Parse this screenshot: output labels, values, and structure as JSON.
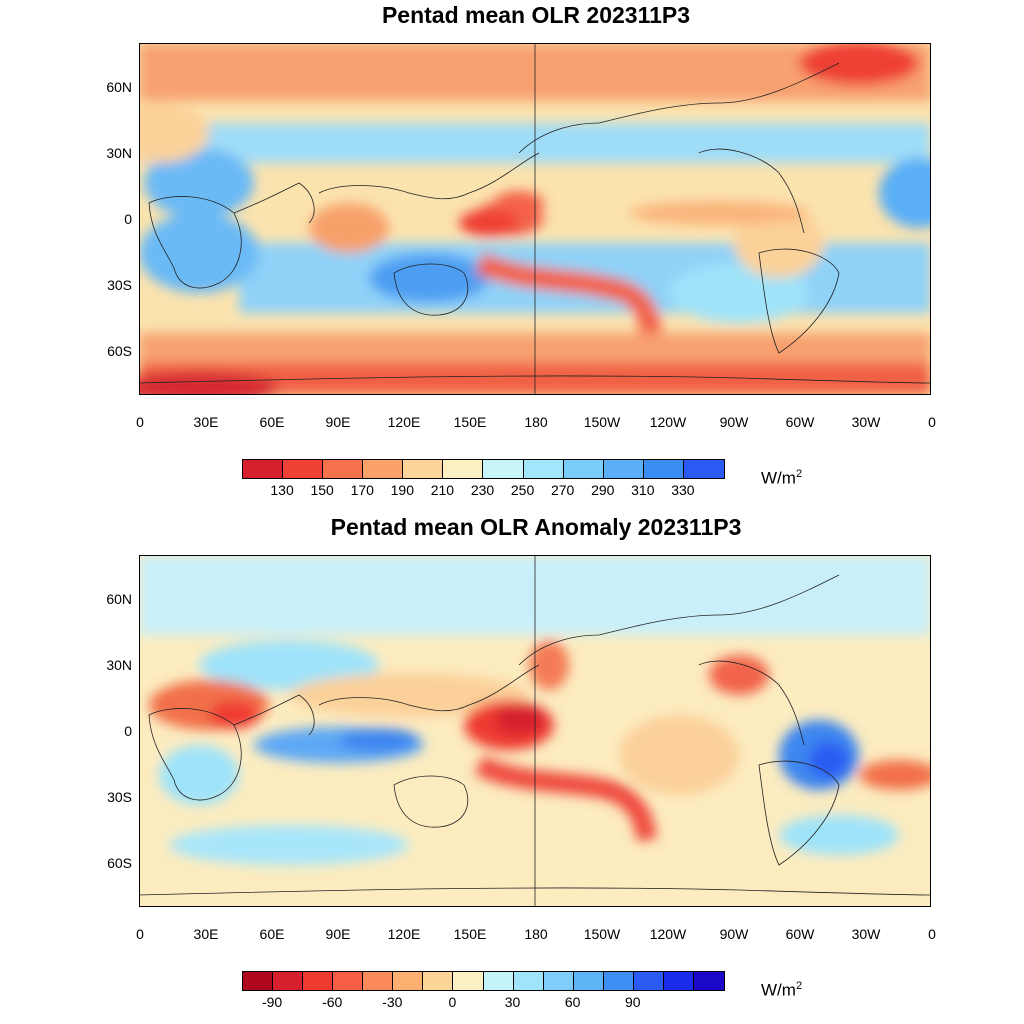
{
  "panels": [
    {
      "title": "Pentad mean OLR 202311P3",
      "units_base": "W/m",
      "units_exp": "2",
      "colorbar": {
        "colors": [
          "#d6202e",
          "#ef4136",
          "#f8714d",
          "#fba26a",
          "#fdd59a",
          "#fcf0c2",
          "#c7f5fa",
          "#a3e6fb",
          "#79cdfa",
          "#5aaff6",
          "#3a8ef4",
          "#2a5af4"
        ],
        "labels": [
          "130",
          "150",
          "170",
          "190",
          "210",
          "230",
          "250",
          "270",
          "290",
          "310",
          "330"
        ]
      }
    },
    {
      "title": "Pentad mean OLR Anomaly 202311P3",
      "units_base": "W/m",
      "units_exp": "2",
      "colorbar": {
        "colors": [
          "#b0081f",
          "#d6202e",
          "#ef3a32",
          "#f75e44",
          "#fa8a5a",
          "#fbb071",
          "#fdd597",
          "#fcf0c4",
          "#c5f4fa",
          "#a0e4fb",
          "#7fcefa",
          "#5db4f6",
          "#3d8ff3",
          "#2a5cf3",
          "#1c2cec",
          "#1c08c8"
        ],
        "labels": [
          "-90",
          "",
          "-60",
          "",
          "-30",
          "",
          "0",
          "",
          "30",
          "",
          "60",
          "",
          "90"
        ]
      }
    }
  ],
  "axes": {
    "y_labels": [
      "60N",
      "30N",
      "0",
      "30S",
      "60S"
    ],
    "x_labels": [
      "0",
      "30E",
      "60E",
      "90E",
      "120E",
      "150E",
      "180",
      "150W",
      "120W",
      "90W",
      "60W",
      "30W",
      "0"
    ]
  }
}
